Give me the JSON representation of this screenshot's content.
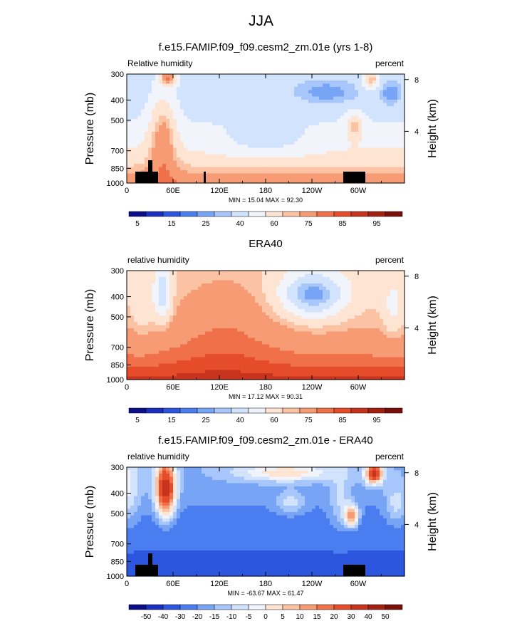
{
  "figure": {
    "title": "JJA"
  },
  "shared_axes": {
    "x_ticks": [
      "0",
      "60E",
      "120E",
      "180",
      "120W",
      "60W"
    ],
    "y_ticks": [
      "300",
      "400",
      "500",
      "700",
      "850",
      "1000"
    ],
    "y_tick_values": [
      300,
      400,
      500,
      700,
      850,
      1000
    ],
    "ylabel": "Pressure (mb)",
    "y2label": "Height (km)",
    "y2_ticks": [
      "8",
      "4"
    ],
    "y2_tick_values": [
      8,
      4
    ]
  },
  "chart_data": [
    {
      "type": "heatmap",
      "title": "f.e15.FAMIP.f09_f09.cesm2_zm.01e (yrs 1-8)",
      "left_label": "Relative humidity",
      "right_label": "percent",
      "stats": "MIN =  15.04  MAX =  92.30",
      "xlabel": "",
      "ylabel": "Pressure (mb)",
      "ylim": [
        1000,
        300
      ],
      "colorbar": {
        "labels": [
          "5",
          "15",
          "25",
          "40",
          "60",
          "75",
          "85",
          "95"
        ],
        "colors": [
          "#0b0f88",
          "#1a2fc0",
          "#2d56df",
          "#4a7ef0",
          "#78a4f6",
          "#a7c6fb",
          "#d2e3fd",
          "#f2f4fb",
          "#fde4d3",
          "#fbc3a3",
          "#f79b74",
          "#ef7049",
          "#e44c2a",
          "#c7331c",
          "#a31f12",
          "#7c0e0a"
        ]
      }
    },
    {
      "type": "heatmap",
      "title": "ERA40",
      "left_label": "relative humidity",
      "right_label": "percent",
      "stats": "MIN =  17.12  MAX =  90.31",
      "xlabel": "",
      "ylabel": "Pressure (mb)",
      "ylim": [
        1000,
        300
      ],
      "colorbar": {
        "labels": [
          "5",
          "15",
          "25",
          "40",
          "60",
          "75",
          "85",
          "95"
        ],
        "colors": [
          "#0b0f88",
          "#1a2fc0",
          "#2d56df",
          "#4a7ef0",
          "#78a4f6",
          "#a7c6fb",
          "#d2e3fd",
          "#f2f4fb",
          "#fde4d3",
          "#fbc3a3",
          "#f79b74",
          "#ef7049",
          "#e44c2a",
          "#c7331c",
          "#a31f12",
          "#7c0e0a"
        ]
      }
    },
    {
      "type": "heatmap",
      "title": "f.e15.FAMIP.f09_f09.cesm2_zm.01e - ERA40",
      "left_label": "relative humidity",
      "right_label": "percent",
      "stats": "MIN = -63.67  MAX =  61.47",
      "xlabel": "",
      "ylabel": "Pressure (mb)",
      "ylim": [
        1000,
        300
      ],
      "colorbar": {
        "labels": [
          "-50",
          "-40",
          "-30",
          "-20",
          "-15",
          "-10",
          "-5",
          "0",
          "5",
          "10",
          "15",
          "20",
          "30",
          "40",
          "50"
        ],
        "colors": [
          "#0b0f88",
          "#1a2fc0",
          "#2d56df",
          "#4a7ef0",
          "#78a4f6",
          "#a7c6fb",
          "#d2e3fd",
          "#f2f4fb",
          "#fde4d3",
          "#fbc3a3",
          "#f79b74",
          "#ef7049",
          "#e44c2a",
          "#c7331c",
          "#a31f12",
          "#7c0e0a"
        ]
      }
    }
  ]
}
